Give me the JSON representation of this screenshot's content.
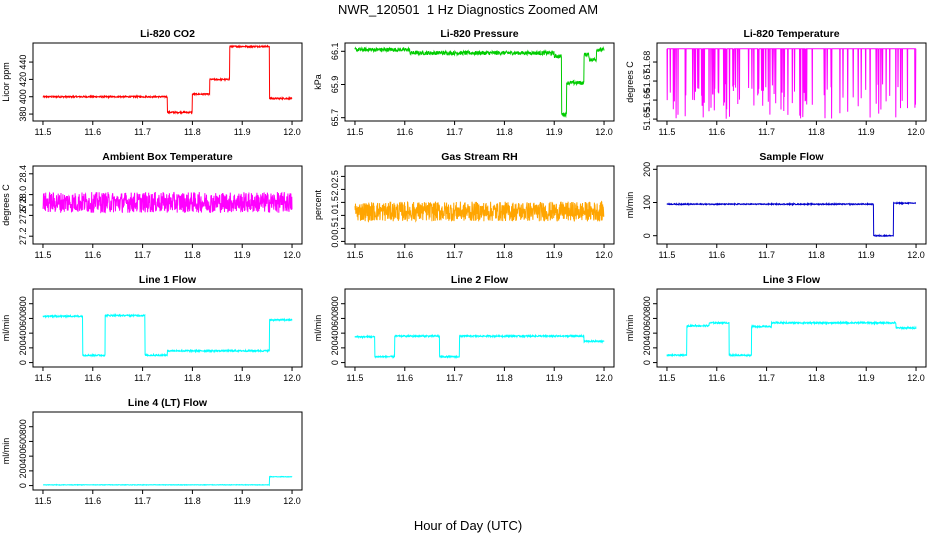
{
  "figure": {
    "title": "NWR_120501  1 Hz Diagnostics Zoomed AM",
    "xlabel": "Hour of Day (UTC)"
  },
  "chart_data": [
    {
      "type": "line",
      "title": "Li-820 CO2",
      "ylabel": "Licor ppm",
      "color": "#ff0000",
      "xlim": [
        11.48,
        12.02
      ],
      "ylim": [
        372,
        462
      ],
      "xticks": [
        "11.5",
        "11.6",
        "11.7",
        "11.8",
        "11.9",
        "12.0"
      ],
      "yticks": [
        "380",
        "400",
        "420",
        "440"
      ],
      "noise": 0.8,
      "segments": [
        [
          11.5,
          11.75,
          400
        ],
        [
          11.75,
          11.8,
          382
        ],
        [
          11.8,
          11.835,
          403
        ],
        [
          11.835,
          11.875,
          420
        ],
        [
          11.875,
          11.955,
          458
        ],
        [
          11.955,
          12.0,
          398
        ]
      ]
    },
    {
      "type": "line",
      "title": "Li-820 Pressure",
      "ylabel": "kPa",
      "color": "#00cc00",
      "xlim": [
        11.48,
        12.02
      ],
      "ylim": [
        65.68,
        66.15
      ],
      "xticks": [
        "11.5",
        "11.6",
        "11.7",
        "11.8",
        "11.9",
        "12.0"
      ],
      "yticks": [
        "65.7",
        "65.9",
        "66.1"
      ],
      "noise": 0.012,
      "segments": [
        [
          11.5,
          11.61,
          66.11
        ],
        [
          11.61,
          11.9,
          66.09
        ],
        [
          11.9,
          11.915,
          66.07
        ],
        [
          11.915,
          11.925,
          65.72
        ],
        [
          11.925,
          11.96,
          65.91
        ],
        [
          11.96,
          11.97,
          66.08
        ],
        [
          11.97,
          11.985,
          66.05
        ],
        [
          11.985,
          12.0,
          66.11
        ]
      ]
    },
    {
      "type": "line",
      "title": "Li-820 Temperature",
      "ylabel": "degrees C",
      "color": "#ff00ff",
      "xlim": [
        11.48,
        12.02
      ],
      "ylim": [
        51.649,
        51.69
      ],
      "xticks": [
        "11.5",
        "11.6",
        "11.7",
        "11.8",
        "11.9",
        "12.0"
      ],
      "yticks": [
        "51.65",
        "51.66",
        "51.67",
        "51.68"
      ],
      "noise": 0.0,
      "spikes": 0.12,
      "spike_to": 51.65,
      "segments": [
        [
          11.5,
          12.0,
          51.687
        ]
      ]
    },
    {
      "type": "line",
      "title": "Ambient Box Temperature",
      "ylabel": "degrees C",
      "color": "#ff00ff",
      "xlim": [
        11.48,
        12.02
      ],
      "ylim": [
        27.05,
        28.55
      ],
      "xticks": [
        "11.5",
        "11.6",
        "11.7",
        "11.8",
        "11.9",
        "12.0"
      ],
      "yticks": [
        "27.2",
        "27.6",
        "27.8",
        "28.0",
        "28.4"
      ],
      "noise": 0.2,
      "segments": [
        [
          11.5,
          12.0,
          27.85
        ]
      ]
    },
    {
      "type": "line",
      "title": "Gas Stream RH",
      "ylabel": "percent",
      "color": "#ffa500",
      "xlim": [
        11.48,
        12.02
      ],
      "ylim": [
        -0.1,
        2.9
      ],
      "xticks": [
        "11.5",
        "11.6",
        "11.7",
        "11.8",
        "11.9",
        "12.0"
      ],
      "yticks": [
        "0.0",
        "0.5",
        "1.0",
        "1.5",
        "2.0",
        "2.5"
      ],
      "noise": 0.38,
      "segments": [
        [
          11.5,
          12.0,
          1.15
        ]
      ]
    },
    {
      "type": "line",
      "title": "Sample Flow",
      "ylabel": "ml/min",
      "color": "#0000cc",
      "xlim": [
        11.48,
        12.02
      ],
      "ylim": [
        -25,
        210
      ],
      "xticks": [
        "11.5",
        "11.6",
        "11.7",
        "11.8",
        "11.9",
        "12.0"
      ],
      "yticks": [
        "0",
        "100",
        "200"
      ],
      "noise": 1.5,
      "segments": [
        [
          11.5,
          11.915,
          95
        ],
        [
          11.915,
          11.955,
          0
        ],
        [
          11.955,
          12.0,
          98
        ]
      ]
    },
    {
      "type": "line",
      "title": "Line 1 Flow",
      "ylabel": "ml/min",
      "color": "#00ffff",
      "xlim": [
        11.48,
        12.02
      ],
      "ylim": [
        -60,
        1000
      ],
      "xticks": [
        "11.5",
        "11.6",
        "11.7",
        "11.8",
        "11.9",
        "12.0"
      ],
      "yticks": [
        "0",
        "200",
        "400",
        "600",
        "800"
      ],
      "noise": 10,
      "segments": [
        [
          11.5,
          11.58,
          630
        ],
        [
          11.58,
          11.625,
          100
        ],
        [
          11.625,
          11.705,
          640
        ],
        [
          11.705,
          11.75,
          100
        ],
        [
          11.75,
          11.955,
          160
        ],
        [
          11.955,
          12.0,
          580
        ]
      ]
    },
    {
      "type": "line",
      "title": "Line 2 Flow",
      "ylabel": "ml/min",
      "color": "#00ffff",
      "xlim": [
        11.48,
        12.02
      ],
      "ylim": [
        -60,
        1000
      ],
      "xticks": [
        "11.5",
        "11.6",
        "11.7",
        "11.8",
        "11.9",
        "12.0"
      ],
      "yticks": [
        "0",
        "200",
        "400",
        "600",
        "800"
      ],
      "noise": 10,
      "segments": [
        [
          11.5,
          11.54,
          350
        ],
        [
          11.54,
          11.58,
          80
        ],
        [
          11.58,
          11.67,
          360
        ],
        [
          11.67,
          11.71,
          80
        ],
        [
          11.71,
          11.96,
          360
        ],
        [
          11.96,
          12.0,
          290
        ]
      ]
    },
    {
      "type": "line",
      "title": "Line 3 Flow",
      "ylabel": "ml/min",
      "color": "#00ffff",
      "xlim": [
        11.48,
        12.02
      ],
      "ylim": [
        -60,
        1000
      ],
      "xticks": [
        "11.5",
        "11.6",
        "11.7",
        "11.8",
        "11.9",
        "12.0"
      ],
      "yticks": [
        "0",
        "200",
        "400",
        "600",
        "800"
      ],
      "noise": 10,
      "segments": [
        [
          11.5,
          11.54,
          100
        ],
        [
          11.54,
          11.585,
          500
        ],
        [
          11.585,
          11.625,
          540
        ],
        [
          11.625,
          11.67,
          100
        ],
        [
          11.67,
          11.71,
          490
        ],
        [
          11.71,
          11.96,
          540
        ],
        [
          11.96,
          12.0,
          470
        ]
      ]
    },
    {
      "type": "line",
      "title": "Line 4 (LT) Flow",
      "ylabel": "ml/min",
      "color": "#00ffff",
      "xlim": [
        11.48,
        12.02
      ],
      "ylim": [
        -60,
        1000
      ],
      "xticks": [
        "11.5",
        "11.6",
        "11.7",
        "11.8",
        "11.9",
        "12.0"
      ],
      "yticks": [
        "0",
        "200",
        "400",
        "600",
        "800"
      ],
      "noise": 3,
      "segments": [
        [
          11.5,
          11.955,
          10
        ],
        [
          11.955,
          12.0,
          120
        ]
      ]
    }
  ]
}
